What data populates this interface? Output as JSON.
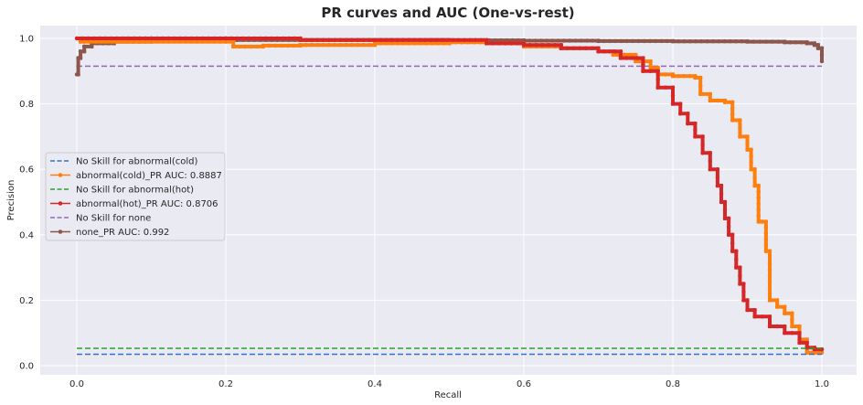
{
  "chart_data": {
    "type": "line",
    "title": "PR curves and AUC (One-vs-rest)",
    "xlabel": "Recall",
    "ylabel": "Precision",
    "xlim": [
      -0.05,
      1.05
    ],
    "ylim": [
      -0.02,
      1.04
    ],
    "xticks": [
      0.0,
      0.2,
      0.4,
      0.6,
      0.8,
      1.0
    ],
    "yticks": [
      0.0,
      0.2,
      0.4,
      0.6,
      0.8,
      1.0
    ],
    "xtick_labels": [
      "0.0",
      "0.2",
      "0.4",
      "0.6",
      "0.8",
      "1.0"
    ],
    "ytick_labels": [
      "0.0",
      "0.2",
      "0.4",
      "0.6",
      "0.8",
      "1.0"
    ],
    "grid": true,
    "legend_position": "center-left",
    "series": [
      {
        "name": "No Skill  for abnormal(cold)",
        "style": "dashed",
        "color": "#3274c4",
        "x": [
          0.0,
          1.0
        ],
        "y": [
          0.035,
          0.035
        ]
      },
      {
        "name": "abnormal(cold)_PR AUC: 0.8887",
        "style": "line-markers",
        "color": "#ff7f0e",
        "x": [
          0.0,
          0.005,
          0.01,
          0.1,
          0.2,
          0.21,
          0.25,
          0.3,
          0.4,
          0.5,
          0.55,
          0.6,
          0.65,
          0.7,
          0.72,
          0.75,
          0.77,
          0.78,
          0.8,
          0.83,
          0.837,
          0.85,
          0.87,
          0.88,
          0.89,
          0.9,
          0.905,
          0.91,
          0.915,
          0.92,
          0.925,
          0.93,
          0.94,
          0.95,
          0.96,
          0.97,
          0.98,
          1.0
        ],
        "y": [
          1.0,
          0.99,
          0.99,
          0.99,
          0.99,
          0.975,
          0.978,
          0.98,
          0.985,
          0.988,
          0.985,
          0.975,
          0.97,
          0.96,
          0.95,
          0.93,
          0.91,
          0.89,
          0.885,
          0.88,
          0.83,
          0.81,
          0.805,
          0.75,
          0.7,
          0.66,
          0.6,
          0.55,
          0.44,
          0.44,
          0.35,
          0.2,
          0.18,
          0.16,
          0.12,
          0.08,
          0.04,
          0.04
        ]
      },
      {
        "name": "No Skill  for abnormal(hot)",
        "style": "dashed",
        "color": "#2ca02c",
        "x": [
          0.0,
          1.0
        ],
        "y": [
          0.053,
          0.053
        ]
      },
      {
        "name": "abnormal(hot)_PR AUC: 0.8706",
        "style": "line-markers",
        "color": "#d62728",
        "x": [
          0.0,
          0.1,
          0.2,
          0.3,
          0.4,
          0.43,
          0.55,
          0.6,
          0.65,
          0.7,
          0.73,
          0.76,
          0.78,
          0.8,
          0.81,
          0.82,
          0.83,
          0.84,
          0.85,
          0.86,
          0.865,
          0.87,
          0.875,
          0.88,
          0.885,
          0.89,
          0.895,
          0.9,
          0.91,
          0.93,
          0.95,
          0.97,
          0.98,
          0.99,
          1.0
        ],
        "y": [
          1.0,
          1.0,
          1.0,
          0.995,
          0.995,
          0.995,
          0.985,
          0.98,
          0.97,
          0.96,
          0.94,
          0.9,
          0.85,
          0.8,
          0.77,
          0.74,
          0.7,
          0.65,
          0.6,
          0.55,
          0.5,
          0.45,
          0.4,
          0.35,
          0.3,
          0.25,
          0.2,
          0.17,
          0.15,
          0.12,
          0.1,
          0.07,
          0.055,
          0.05,
          0.05
        ]
      },
      {
        "name": "No Skill  for none",
        "style": "dashed",
        "color": "#9467bd",
        "x": [
          0.0,
          1.0
        ],
        "y": [
          0.915,
          0.915
        ]
      },
      {
        "name": "none_PR AUC: 0.992",
        "style": "line-markers",
        "color": "#8c564b",
        "x": [
          0.0,
          0.002,
          0.005,
          0.01,
          0.02,
          0.05,
          0.1,
          0.2,
          0.3,
          0.4,
          0.5,
          0.6,
          0.7,
          0.8,
          0.9,
          0.95,
          0.98,
          0.99,
          0.995,
          1.0
        ],
        "y": [
          0.89,
          0.94,
          0.96,
          0.975,
          0.985,
          0.99,
          0.993,
          0.995,
          0.995,
          0.995,
          0.994,
          0.993,
          0.992,
          0.991,
          0.99,
          0.988,
          0.985,
          0.98,
          0.97,
          0.93
        ]
      }
    ]
  }
}
